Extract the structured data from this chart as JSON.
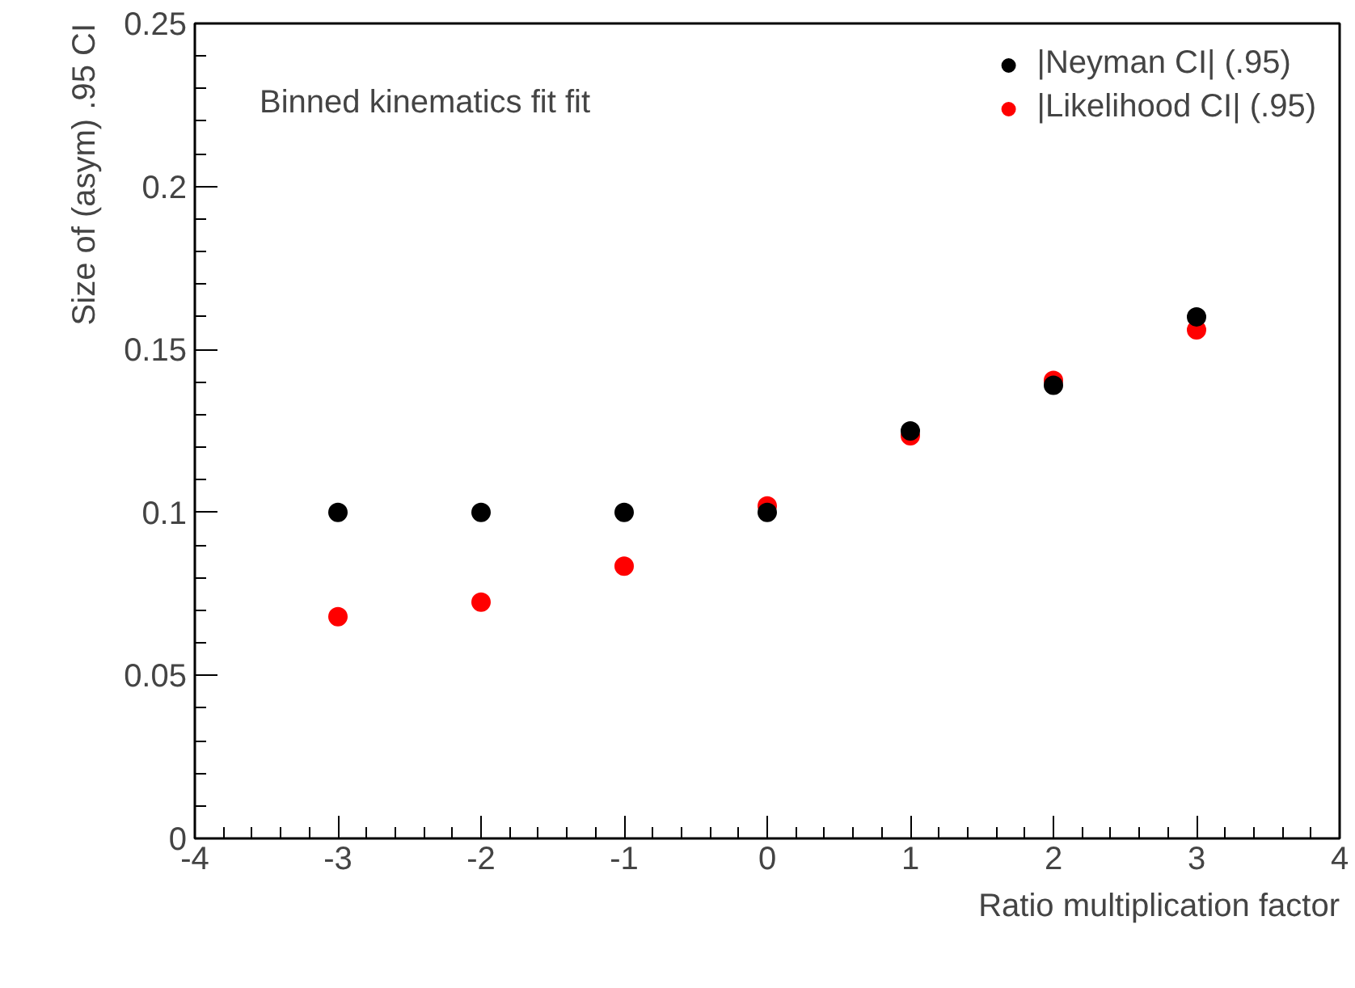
{
  "chart_data": {
    "type": "scatter",
    "xlabel": "Ratio multiplication factor",
    "ylabel": "Size of (asym) .95 CI",
    "annotations": [
      "Binned kinematics fit fit"
    ],
    "x": [
      -3,
      -2,
      -1,
      0,
      1,
      2,
      3
    ],
    "series": [
      {
        "name": "|Neyman CI| (.95)",
        "color": "#000000",
        "values": [
          0.1,
          0.1,
          0.1,
          0.1,
          0.125,
          0.139,
          0.16
        ]
      },
      {
        "name": "|Likelihood CI| (.95)",
        "color": "#ff0000",
        "values": [
          0.068,
          0.0725,
          0.0835,
          0.102,
          0.1235,
          0.1405,
          0.156
        ]
      }
    ],
    "xlim": [
      -4,
      4
    ],
    "xticks": [
      -4,
      -3,
      -2,
      -1,
      0,
      1,
      2,
      3,
      4
    ],
    "ylim": [
      0,
      0.25
    ],
    "yticks": [
      0,
      0.05,
      0.1,
      0.15,
      0.2,
      0.25
    ],
    "grid": false,
    "legend": "top right",
    "marker": "circle"
  }
}
